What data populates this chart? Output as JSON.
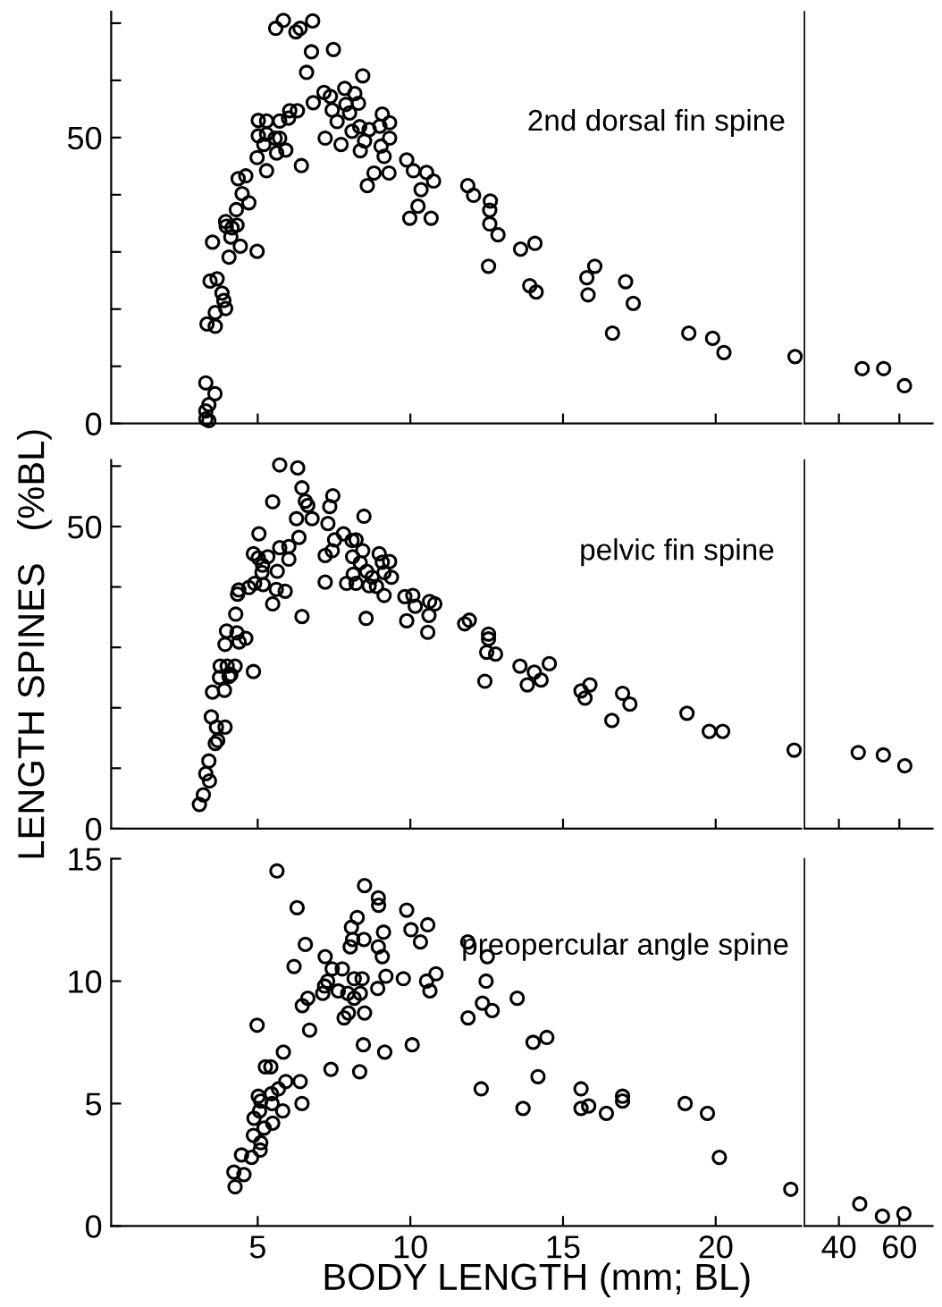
{
  "chart_data": [
    {
      "type": "scatter",
      "annotations": [
        "2nd dorsal fin spine"
      ],
      "marker": "circle",
      "color": "#000000",
      "tick_labels": "y",
      "xlim": [
        0.2,
        22.8
      ],
      "xticks": [
        5,
        10,
        15,
        20
      ],
      "ylim": [
        0,
        72
      ],
      "yticks": [
        0,
        {
          "value": 10,
          "label": null
        },
        {
          "value": 20,
          "label": null
        },
        {
          "value": 30,
          "label": null
        },
        {
          "value": 40,
          "label": null
        },
        50,
        {
          "value": 60,
          "label": null
        },
        {
          "value": 70,
          "label": null
        }
      ],
      "x": [
        3.3,
        3.3,
        3.4,
        3.3,
        3.4,
        3.6,
        3.34,
        3.61,
        3.44,
        3.67,
        3.83,
        3.89,
        3.95,
        3.61,
        3.52,
        4.06,
        3.95,
        3.97,
        4.12,
        4.32,
        4.16,
        4.43,
        4.98,
        4.3,
        4.49,
        4.71,
        4.36,
        4.61,
        4.98,
        5.29,
        5.02,
        5.29,
        5.02,
        5.29,
        5.2,
        5.57,
        5.72,
        5.62,
        5.92,
        6.43,
        5.72,
        6.05,
        6.3,
        6.01,
        5.59,
        5.84,
        6.25,
        6.39,
        6.8,
        6.76,
        7.48,
        6.6,
        6.82,
        7.21,
        7.17,
        7.38,
        7.44,
        7.6,
        7.73,
        7.85,
        7.89,
        8.01,
        8.18,
        8.3,
        8.09,
        8.34,
        8.36,
        8.5,
        8.44,
        8.59,
        8.81,
        8.65,
        9.0,
        9.08,
        9.32,
        9.04,
        9.14,
        9.3,
        9.32,
        9.88,
        10.1,
        10.53,
        10.76,
        10.35,
        10.25,
        9.98,
        10.68,
        11.88,
        12.07,
        12.62,
        12.6,
        12.6,
        12.87,
        12.56,
        13.61,
        14.08,
        13.91,
        14.12,
        15.78,
        16.04,
        15.82,
        17.05,
        17.3,
        16.62,
        19.12,
        19.9,
        20.27,
        22.6
      ],
      "values": [
        7.1,
        2.2,
        3.3,
        0.8,
        0.5,
        5.2,
        17.4,
        17.0,
        24.9,
        25.3,
        22.8,
        21.5,
        20.1,
        19.4,
        31.7,
        29.1,
        35.3,
        34.5,
        32.6,
        34.7,
        34.2,
        31.0,
        30.1,
        37.4,
        40.2,
        38.6,
        42.8,
        43.3,
        46.5,
        44.2,
        53.0,
        52.9,
        50.3,
        50.6,
        48.8,
        49.9,
        49.9,
        47.3,
        47.8,
        45.1,
        52.9,
        54.7,
        54.7,
        53.4,
        69.1,
        70.5,
        68.5,
        69.1,
        70.4,
        65.0,
        65.4,
        61.4,
        56.1,
        49.9,
        57.9,
        57.2,
        54.8,
        52.8,
        48.8,
        58.6,
        55.8,
        54.3,
        57.7,
        56.0,
        51.1,
        51.9,
        47.7,
        49.4,
        60.8,
        41.6,
        43.8,
        51.4,
        52.0,
        54.1,
        52.6,
        48.5,
        46.7,
        43.8,
        49.9,
        46.1,
        44.2,
        43.9,
        42.4,
        40.9,
        38.0,
        35.9,
        35.9,
        41.6,
        39.9,
        38.9,
        37.3,
        34.9,
        33.0,
        27.5,
        30.5,
        31.5,
        24.1,
        23.0,
        25.5,
        27.5,
        22.5,
        24.8,
        21.0,
        15.8,
        15.8,
        14.9,
        12.4,
        11.7
      ]
    },
    {
      "type": "scatter",
      "marker": "circle",
      "color": "#000000",
      "tick_labels": false,
      "xlim": [
        28.6,
        71
      ],
      "xticks": [
        40,
        60
      ],
      "ylim": [
        0,
        72
      ],
      "x": [
        47.7,
        54.8,
        61.7
      ],
      "values": [
        9.6,
        9.6,
        6.6
      ]
    },
    {
      "type": "scatter",
      "annotations": [
        "pelvic fin spine"
      ],
      "marker": "circle",
      "color": "#000000",
      "tick_labels": "y",
      "ylabel": "LENGTH SPINES   (%BL)",
      "xlim": [
        0.2,
        22.8
      ],
      "xticks": [
        5,
        10,
        15,
        20
      ],
      "ylim": [
        0,
        61
      ],
      "yticks": [
        0,
        {
          "value": 10,
          "label": null
        },
        {
          "value": 20,
          "label": null
        },
        {
          "value": 30,
          "label": null
        },
        {
          "value": 40,
          "label": null
        },
        50,
        {
          "value": 60,
          "label": null
        }
      ],
      "x": [
        3.09,
        3.22,
        3.42,
        3.3,
        3.4,
        3.61,
        3.69,
        3.65,
        3.93,
        3.48,
        3.52,
        3.91,
        3.75,
        3.77,
        4.0,
        4.26,
        4.06,
        4.12,
        3.93,
        3.98,
        4.32,
        4.39,
        4.61,
        4.28,
        4.34,
        4.38,
        4.71,
        4.86,
        4.9,
        5.04,
        5.02,
        4.86,
        5.16,
        5.33,
        5.14,
        5.18,
        5.49,
        5.61,
        5.9,
        5.64,
        5.72,
        6.02,
        6.02,
        5.49,
        5.72,
        6.31,
        6.45,
        6.56,
        6.64,
        6.78,
        6.27,
        6.35,
        6.45,
        7.21,
        7.21,
        7.3,
        7.36,
        7.46,
        7.44,
        7.52,
        7.81,
        7.91,
        8.09,
        8.11,
        8.13,
        8.22,
        8.22,
        8.36,
        8.44,
        8.48,
        8.55,
        8.57,
        8.65,
        8.75,
        8.89,
        8.98,
        9.08,
        9.14,
        9.32,
        9.38,
        9.14,
        9.82,
        10.08,
        9.88,
        10.16,
        10.57,
        10.63,
        10.8,
        10.61,
        11.78,
        11.93,
        12.56,
        12.56,
        12.5,
        12.79,
        12.44,
        13.59,
        14.06,
        13.83,
        14.28,
        14.55,
        15.59,
        15.72,
        15.88,
        16.6,
        16.95,
        17.19,
        19.06,
        19.79,
        20.23,
        22.57
      ],
      "values": [
        4.0,
        5.6,
        7.9,
        9.1,
        11.2,
        14.1,
        14.6,
        16.8,
        16.8,
        18.5,
        22.6,
        22.9,
        25.0,
        26.9,
        26.9,
        26.9,
        25.2,
        25.5,
        30.5,
        32.7,
        32.4,
        30.9,
        31.5,
        35.5,
        38.8,
        39.5,
        39.9,
        26.0,
        40.6,
        48.8,
        44.8,
        45.5,
        43.6,
        45.0,
        42.4,
        40.4,
        37.2,
        39.6,
        39.3,
        42.6,
        46.5,
        44.6,
        46.7,
        54.1,
        60.2,
        59.7,
        56.4,
        54.2,
        53.5,
        51.3,
        51.3,
        48.2,
        35.1,
        40.8,
        45.2,
        50.5,
        53.3,
        55.1,
        46.0,
        47.8,
        48.8,
        40.6,
        47.7,
        45.0,
        42.1,
        40.6,
        47.8,
        44.0,
        46.0,
        51.7,
        34.8,
        42.6,
        40.2,
        41.6,
        40.1,
        45.5,
        44.1,
        38.6,
        44.2,
        41.6,
        42.4,
        38.4,
        38.6,
        34.4,
        36.8,
        32.5,
        37.6,
        37.2,
        35.3,
        33.9,
        34.5,
        32.2,
        31.4,
        29.2,
        28.9,
        24.4,
        26.9,
        25.9,
        23.8,
        24.6,
        27.3,
        22.8,
        21.6,
        23.8,
        17.9,
        22.4,
        20.6,
        19.1,
        16.1,
        16.1,
        13.0
      ]
    },
    {
      "type": "scatter",
      "marker": "circle",
      "color": "#000000",
      "tick_labels": false,
      "xlim": [
        28.6,
        71
      ],
      "xticks": [
        40,
        60
      ],
      "ylim": [
        0,
        61
      ],
      "x": [
        46.4,
        54.7,
        61.8
      ],
      "values": [
        12.6,
        12.2,
        10.4
      ]
    },
    {
      "type": "scatter",
      "annotations": [
        "preopercular angle spine"
      ],
      "marker": "circle",
      "color": "#000000",
      "xlabel": "BODY LENGTH (mm; BL)",
      "xlim": [
        0.2,
        22.8
      ],
      "xticks": [
        5,
        10,
        15,
        20
      ],
      "ylim": [
        0,
        15
      ],
      "yticks": [
        0,
        5,
        10,
        15
      ],
      "x": [
        4.26,
        4.22,
        4.55,
        4.47,
        4.8,
        5.08,
        4.86,
        5.1,
        5.21,
        5.49,
        4.88,
        5.06,
        5.47,
        5.82,
        5.02,
        5.1,
        5.45,
        5.68,
        5.92,
        6.39,
        6.45,
        5.25,
        5.43,
        5.84,
        4.98,
        6.7,
        7.4,
        8.34,
        8.5,
        8.46,
        9.16,
        10.06,
        6.46,
        6.64,
        6.19,
        6.56,
        6.29,
        5.63,
        7.13,
        7.19,
        7.29,
        7.21,
        7.44,
        7.64,
        7.77,
        7.83,
        7.97,
        7.95,
        8.03,
        8.11,
        8.07,
        8.16,
        8.42,
        8.36,
        8.16,
        8.26,
        8.48,
        8.5,
        8.95,
        8.96,
        9.12,
        8.95,
        9.08,
        8.93,
        9.2,
        9.77,
        9.88,
        10.02,
        10.33,
        10.57,
        10.53,
        10.64,
        10.84,
        11.88,
        11.89,
        12.52,
        12.48,
        12.36,
        12.68,
        12.32,
        13.5,
        13.69,
        14.02,
        14.47,
        14.18,
        15.59,
        15.59,
        15.84,
        16.42,
        16.95,
        16.95,
        19.0,
        19.73,
        20.12,
        22.46
      ],
      "values": [
        1.6,
        2.2,
        2.1,
        2.9,
        2.8,
        3.1,
        3.7,
        3.4,
        4.0,
        4.2,
        4.4,
        4.7,
        5.0,
        4.7,
        5.3,
        5.1,
        5.4,
        5.6,
        5.9,
        5.9,
        5.0,
        6.5,
        6.5,
        7.1,
        8.2,
        8.0,
        6.4,
        6.3,
        8.7,
        7.4,
        7.1,
        7.4,
        9.0,
        9.3,
        10.6,
        11.5,
        13.0,
        14.5,
        9.5,
        9.8,
        10.0,
        11.0,
        10.5,
        9.6,
        10.5,
        8.5,
        8.7,
        9.5,
        11.4,
        11.7,
        12.2,
        10.1,
        10.1,
        9.5,
        9.3,
        12.6,
        11.7,
        13.9,
        13.4,
        13.1,
        12.0,
        11.4,
        11.0,
        9.7,
        10.2,
        10.1,
        12.9,
        12.1,
        11.6,
        12.3,
        10.0,
        9.6,
        10.3,
        11.6,
        8.5,
        11.0,
        10.0,
        9.1,
        8.8,
        5.6,
        9.3,
        4.8,
        7.5,
        7.7,
        6.1,
        5.6,
        4.8,
        4.9,
        4.6,
        5.1,
        5.3,
        5.0,
        4.6,
        2.8,
        1.5
      ]
    },
    {
      "type": "scatter",
      "marker": "circle",
      "color": "#000000",
      "tick_labels": "x",
      "xlim": [
        28.6,
        71
      ],
      "xticks": [
        40,
        60
      ],
      "ylim": [
        0,
        15
      ],
      "x": [
        46.9,
        54.4,
        61.5
      ],
      "values": [
        0.9,
        0.4,
        0.5
      ]
    }
  ]
}
